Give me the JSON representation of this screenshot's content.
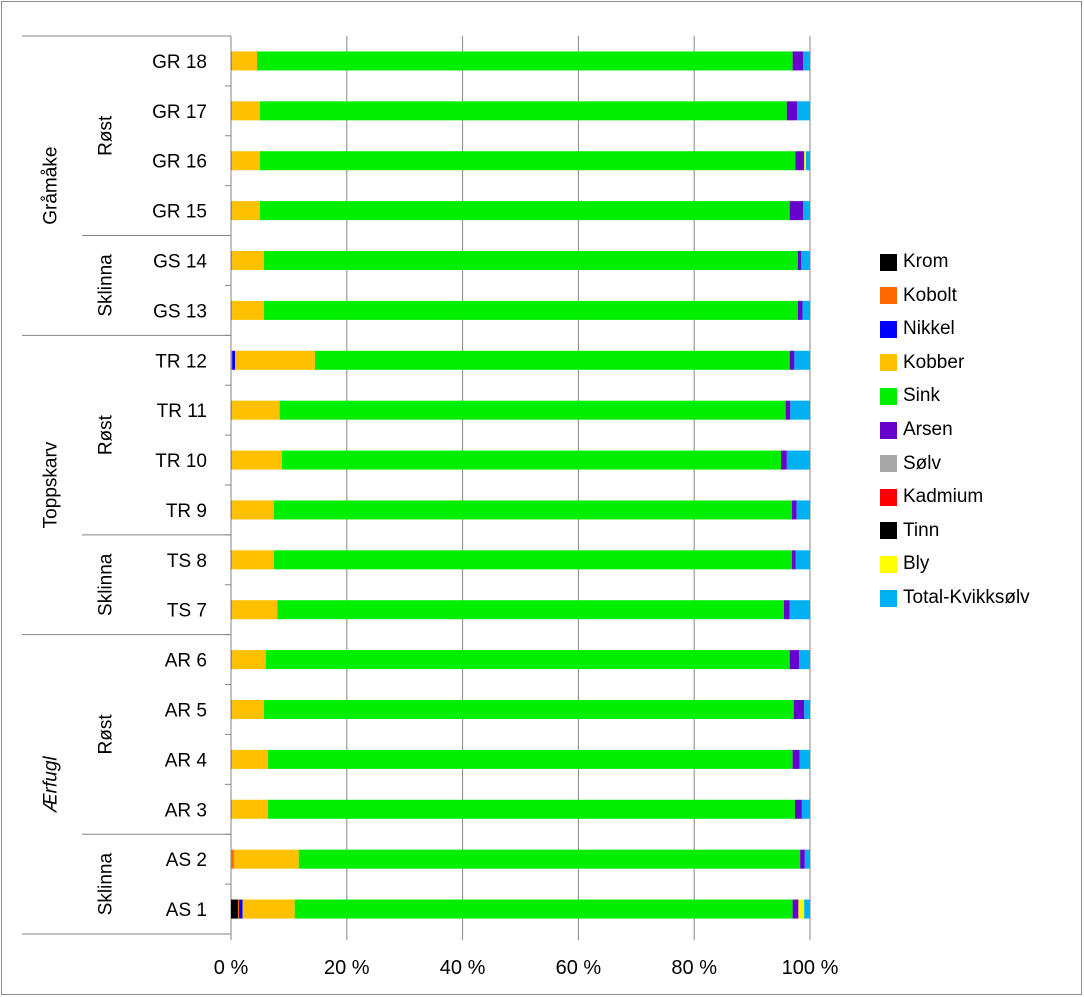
{
  "chart_data": {
    "type": "bar",
    "orientation": "horizontal",
    "stacked": "100%",
    "title": "",
    "xlabel": "",
    "ylabel": "",
    "xlim": [
      0,
      100
    ],
    "x_ticks": [
      "0 %",
      "20 %",
      "40 %",
      "60 %",
      "80 %",
      "100 %"
    ],
    "grid": "vertical",
    "legend_position": "right",
    "categories": [
      "GR 18",
      "GR 17",
      "GR 16",
      "GR 15",
      "GS 14",
      "GS 13",
      "TR 12",
      "TR 11",
      "TR 10",
      "TR 9",
      "TS 8",
      "TS 7",
      "AR 6",
      "AR 5",
      "AR 4",
      "AR 3",
      "AS 2",
      "AS 1"
    ],
    "groups": [
      {
        "species": "Gråmåke",
        "species_italic": false,
        "locations": [
          {
            "name": "Røst",
            "categories": [
              "GR 18",
              "GR 17",
              "GR 16",
              "GR 15"
            ]
          },
          {
            "name": "Sklinna",
            "categories": [
              "GS 14",
              "GS 13"
            ]
          }
        ]
      },
      {
        "species": "Toppskarv",
        "species_italic": false,
        "locations": [
          {
            "name": "Røst",
            "categories": [
              "TR 12",
              "TR 11",
              "TR 10",
              "TR 9"
            ]
          },
          {
            "name": "Sklinna",
            "categories": [
              "TS 8",
              "TS 7"
            ]
          }
        ]
      },
      {
        "species": "Ærfugl",
        "species_italic": true,
        "locations": [
          {
            "name": "Røst",
            "categories": [
              "AR 6",
              "AR 5",
              "AR 4",
              "AR 3"
            ]
          },
          {
            "name": "Sklinna",
            "categories": [
              "AS 2",
              "AS 1"
            ]
          }
        ]
      }
    ],
    "series": [
      {
        "name": "Krom",
        "color": "#000000",
        "values": [
          0,
          0,
          0,
          0,
          0,
          0,
          0,
          0,
          0,
          0,
          0,
          0,
          0,
          0,
          0,
          0,
          0,
          1.2
        ]
      },
      {
        "name": "Kobolt",
        "color": "#ff6600",
        "values": [
          0.2,
          0.2,
          0.2,
          0.2,
          0.2,
          0.2,
          0.2,
          0.2,
          0.2,
          0.2,
          0.2,
          0.2,
          0.2,
          0.2,
          0.2,
          0.2,
          0.5,
          0.2
        ]
      },
      {
        "name": "Nikkel",
        "color": "#0000ff",
        "values": [
          0,
          0,
          0,
          0,
          0,
          0,
          0.5,
          0,
          0,
          0,
          0,
          0,
          0,
          0,
          0,
          0,
          0,
          0.6
        ]
      },
      {
        "name": "Kobber",
        "color": "#ffc000",
        "values": [
          4.3,
          4.8,
          4.8,
          4.8,
          5.5,
          5.5,
          13.8,
          8.2,
          8.6,
          7.2,
          7.2,
          7.8,
          5.8,
          5.5,
          6.2,
          6.2,
          11.2,
          9.0
        ]
      },
      {
        "name": "Sink",
        "color": "#00ee00",
        "values": [
          92.5,
          91.0,
          92.5,
          91.5,
          92.2,
          92.2,
          82.0,
          87.4,
          86.2,
          89.5,
          89.5,
          87.5,
          90.5,
          91.5,
          90.6,
          91.0,
          86.6,
          86.0
        ]
      },
      {
        "name": "Arsen",
        "color": "#6600cc",
        "values": [
          1.8,
          1.8,
          1.5,
          2.3,
          0.6,
          0.8,
          0.8,
          0.8,
          1.0,
          0.8,
          0.6,
          1.0,
          1.6,
          1.8,
          1.2,
          1.2,
          0.8,
          1.0
        ]
      },
      {
        "name": "Sølv",
        "color": "#a6a6a6",
        "values": [
          0,
          0,
          0,
          0,
          0,
          0,
          0,
          0,
          0,
          0,
          0,
          0,
          0,
          0,
          0,
          0,
          0,
          0
        ]
      },
      {
        "name": "Kadmium",
        "color": "#ff0000",
        "values": [
          0,
          0,
          0,
          0,
          0,
          0,
          0,
          0,
          0,
          0,
          0,
          0,
          0,
          0,
          0,
          0,
          0,
          0
        ]
      },
      {
        "name": "Tinn",
        "color": "#000000",
        "values": [
          0,
          0,
          0,
          0,
          0,
          0,
          0,
          0,
          0,
          0,
          0,
          0,
          0,
          0,
          0,
          0,
          0,
          0
        ]
      },
      {
        "name": "Bly",
        "color": "#ffff00",
        "values": [
          0,
          0,
          0.3,
          0,
          0,
          0,
          0,
          0,
          0,
          0,
          0,
          0,
          0,
          0,
          0,
          0,
          0,
          1.0
        ]
      },
      {
        "name": "Total-Kvikksølv",
        "color": "#00b0f0",
        "values": [
          1.2,
          2.2,
          0.7,
          1.2,
          1.5,
          1.3,
          2.7,
          3.4,
          4.0,
          2.3,
          2.5,
          3.5,
          1.9,
          1.0,
          1.8,
          1.4,
          0.9,
          1.0
        ]
      }
    ]
  }
}
